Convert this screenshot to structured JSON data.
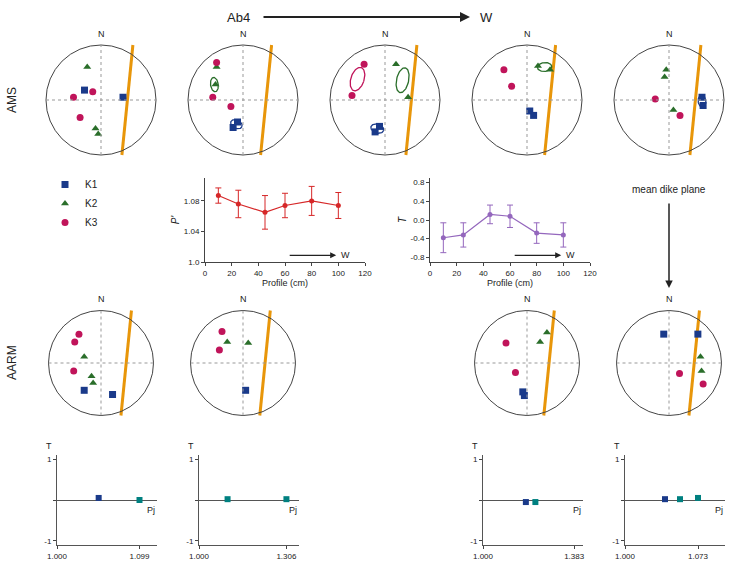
{
  "chart_data": [
    {
      "type": "stereonet",
      "xlim": [
        -1.2,
        1.2
      ],
      "ylim": [
        -1.2,
        1.2
      ],
      "tick_labels": false,
      "radius": 1.0,
      "annotations": [
        "N"
      ],
      "legend": "bottom",
      "dike": {
        "color": "#e8960a",
        "x": [
          0.38,
          0.58
        ],
        "values": [
          -1.0,
          1.0
        ]
      },
      "series": [
        {
          "name": "K1",
          "color": "#1a3a8a",
          "marker": "square",
          "x": [
            -0.3,
            0.4
          ],
          "values": [
            0.18,
            0.05
          ]
        },
        {
          "name": "K2",
          "color": "#2a6e2a",
          "marker": "triangle-up",
          "x": [
            -0.25,
            -0.1,
            -0.05
          ],
          "values": [
            0.6,
            -0.52,
            -0.62
          ]
        },
        {
          "name": "K3",
          "color": "#c0145a",
          "marker": "circle",
          "x": [
            -0.15,
            -0.5,
            -0.38
          ],
          "values": [
            0.15,
            0.05,
            -0.32
          ]
        }
      ]
    },
    {
      "type": "stereonet",
      "xlim": [
        -1.2,
        1.2
      ],
      "ylim": [
        -1.2,
        1.2
      ],
      "tick_labels": false,
      "radius": 1.0,
      "annotations": [
        "N"
      ],
      "dike": {
        "color": "#e8960a",
        "x": [
          0.32,
          0.52
        ],
        "values": [
          -1.0,
          1.0
        ]
      },
      "series": [
        {
          "name": "K1",
          "color": "#1a3a8a",
          "marker": "square",
          "x": [
            -0.1,
            -0.18
          ],
          "values": [
            -0.4,
            -0.5
          ]
        },
        {
          "name": "K2",
          "color": "#2a6e2a",
          "marker": "triangle-up",
          "x": [
            -0.48,
            -0.5
          ],
          "values": [
            0.6,
            0.28
          ]
        },
        {
          "name": "K3",
          "color": "#c0145a",
          "marker": "circle",
          "x": [
            -0.48,
            -0.55,
            -0.22
          ],
          "values": [
            0.68,
            0.05,
            -0.12
          ]
        }
      ],
      "ellipses": [
        {
          "cx": -0.12,
          "cy": -0.44,
          "w": 0.22,
          "h": 0.15,
          "angle": -25,
          "color": "#1a3a8a"
        },
        {
          "cx": -0.52,
          "cy": 0.28,
          "w": 0.14,
          "h": 0.26,
          "angle": 8,
          "color": "#2a6e2a"
        }
      ]
    },
    {
      "type": "stereonet",
      "xlim": [
        -1.2,
        1.2
      ],
      "ylim": [
        -1.2,
        1.2
      ],
      "tick_labels": false,
      "radius": 1.0,
      "annotations": [
        "N"
      ],
      "dike": {
        "color": "#e8960a",
        "x": [
          0.38,
          0.58
        ],
        "values": [
          -1.0,
          1.0
        ]
      },
      "series": [
        {
          "name": "K1",
          "color": "#1a3a8a",
          "marker": "square",
          "x": [
            -0.1,
            -0.18
          ],
          "values": [
            -0.48,
            -0.58
          ]
        },
        {
          "name": "K2",
          "color": "#2a6e2a",
          "marker": "triangle-up",
          "x": [
            0.2,
            0.42
          ],
          "values": [
            0.65,
            0.05
          ]
        },
        {
          "name": "K3",
          "color": "#c0145a",
          "marker": "circle",
          "x": [
            -0.38,
            -0.6
          ],
          "values": [
            0.65,
            0.08
          ]
        }
      ],
      "ellipses": [
        {
          "cx": -0.14,
          "cy": -0.52,
          "w": 0.24,
          "h": 0.16,
          "angle": -18,
          "color": "#1a3a8a"
        },
        {
          "cx": 0.32,
          "cy": 0.36,
          "w": 0.22,
          "h": 0.46,
          "angle": -12,
          "color": "#2a6e2a"
        },
        {
          "cx": -0.5,
          "cy": 0.38,
          "w": 0.24,
          "h": 0.44,
          "angle": -18,
          "color": "#c0145a"
        }
      ]
    },
    {
      "type": "stereonet",
      "xlim": [
        -1.2,
        1.2
      ],
      "ylim": [
        -1.2,
        1.2
      ],
      "tick_labels": false,
      "radius": 1.0,
      "annotations": [
        "N"
      ],
      "dike": {
        "color": "#e8960a",
        "x": [
          0.32,
          0.52
        ],
        "values": [
          -1.0,
          1.0
        ]
      },
      "series": [
        {
          "name": "K1",
          "color": "#1a3a8a",
          "marker": "square",
          "x": [
            0.05,
            0.12
          ],
          "values": [
            -0.2,
            -0.28
          ]
        },
        {
          "name": "K2",
          "color": "#2a6e2a",
          "marker": "triangle-up",
          "x": [
            0.42,
            0.2
          ],
          "values": [
            0.55,
            0.62
          ]
        },
        {
          "name": "K3",
          "color": "#c0145a",
          "marker": "circle",
          "x": [
            -0.42,
            -0.28
          ],
          "values": [
            0.55,
            0.25
          ]
        }
      ],
      "ellipses": [
        {
          "cx": 0.32,
          "cy": 0.6,
          "w": 0.26,
          "h": 0.16,
          "angle": 5,
          "color": "#2a6e2a"
        }
      ]
    },
    {
      "type": "stereonet",
      "xlim": [
        -1.2,
        1.2
      ],
      "ylim": [
        -1.2,
        1.2
      ],
      "tick_labels": false,
      "radius": 1.0,
      "annotations": [
        "N"
      ],
      "dike": {
        "color": "#e8960a",
        "x": [
          0.38,
          0.58
        ],
        "values": [
          -1.0,
          1.0
        ]
      },
      "series": [
        {
          "name": "K1",
          "color": "#1a3a8a",
          "marker": "square",
          "x": [
            0.6,
            0.62
          ],
          "values": [
            0.05,
            -0.1
          ]
        },
        {
          "name": "K2",
          "color": "#2a6e2a",
          "marker": "triangle-up",
          "x": [
            -0.05,
            -0.08,
            0.08
          ],
          "values": [
            0.55,
            0.42,
            -0.18
          ]
        },
        {
          "name": "K3",
          "color": "#c0145a",
          "marker": "circle",
          "x": [
            -0.25,
            0.2
          ],
          "values": [
            0.02,
            -0.28
          ]
        }
      ],
      "ellipses": [
        {
          "cx": 0.6,
          "cy": -0.02,
          "w": 0.14,
          "h": 0.22,
          "angle": 5,
          "color": "#1a3a8a"
        }
      ]
    },
    {
      "type": "stereonet",
      "xlim": [
        -1.2,
        1.2
      ],
      "ylim": [
        -1.2,
        1.2
      ],
      "tick_labels": false,
      "radius": 1.0,
      "annotations": [
        "N"
      ],
      "dike": {
        "color": "#e8960a",
        "x": [
          0.38,
          0.58
        ],
        "values": [
          -1.0,
          1.0
        ]
      },
      "series": [
        {
          "name": "K1",
          "color": "#1a3a8a",
          "marker": "square",
          "x": [
            -0.32,
            0.22
          ],
          "values": [
            -0.52,
            -0.6
          ]
        },
        {
          "name": "K2",
          "color": "#2a6e2a",
          "marker": "triangle-up",
          "x": [
            -0.32,
            -0.18,
            -0.15
          ],
          "values": [
            0.12,
            -0.25,
            -0.38
          ]
        },
        {
          "name": "K3",
          "color": "#c0145a",
          "marker": "circle",
          "x": [
            -0.5,
            -0.42,
            -0.52
          ],
          "values": [
            0.4,
            0.55,
            -0.15
          ]
        }
      ]
    },
    {
      "type": "stereonet",
      "xlim": [
        -1.2,
        1.2
      ],
      "ylim": [
        -1.2,
        1.2
      ],
      "tick_labels": false,
      "radius": 1.0,
      "annotations": [
        "N"
      ],
      "dike": {
        "color": "#e8960a",
        "x": [
          0.32,
          0.52
        ],
        "values": [
          -1.0,
          1.0
        ]
      },
      "series": [
        {
          "name": "K1",
          "color": "#1a3a8a",
          "marker": "square",
          "x": [
            0.05
          ],
          "values": [
            -0.52
          ]
        },
        {
          "name": "K2",
          "color": "#2a6e2a",
          "marker": "triangle-up",
          "x": [
            -0.3,
            0.1
          ],
          "values": [
            0.4,
            0.38
          ]
        },
        {
          "name": "K3",
          "color": "#c0145a",
          "marker": "circle",
          "x": [
            -0.4,
            -0.45
          ],
          "values": [
            0.6,
            0.25
          ]
        }
      ]
    },
    {
      "type": "stereonet",
      "xlim": [
        -1.2,
        1.2
      ],
      "ylim": [
        -1.2,
        1.2
      ],
      "tick_labels": false,
      "radius": 1.0,
      "annotations": [
        "N"
      ],
      "dike": {
        "color": "#e8960a",
        "x": [
          0.32,
          0.52
        ],
        "values": [
          -1.0,
          1.0
        ]
      },
      "series": [
        {
          "name": "K1",
          "color": "#1a3a8a",
          "marker": "square",
          "x": [
            -0.08,
            -0.05
          ],
          "values": [
            -0.55,
            -0.62
          ]
        },
        {
          "name": "K2",
          "color": "#2a6e2a",
          "marker": "triangle-up",
          "x": [
            0.25,
            0.38
          ],
          "values": [
            0.4,
            0.58
          ]
        },
        {
          "name": "K3",
          "color": "#c0145a",
          "marker": "circle",
          "x": [
            -0.4,
            -0.22
          ],
          "values": [
            0.38,
            -0.18
          ]
        }
      ]
    },
    {
      "type": "stereonet",
      "xlim": [
        -1.2,
        1.2
      ],
      "ylim": [
        -1.2,
        1.2
      ],
      "tick_labels": false,
      "radius": 1.0,
      "annotations": [
        "N"
      ],
      "dike": {
        "color": "#e8960a",
        "x": [
          0.38,
          0.58
        ],
        "values": [
          -1.0,
          1.0
        ]
      },
      "series": [
        {
          "name": "K1",
          "color": "#1a3a8a",
          "marker": "square",
          "x": [
            -0.1,
            0.55
          ],
          "values": [
            0.55,
            0.55
          ]
        },
        {
          "name": "K2",
          "color": "#2a6e2a",
          "marker": "triangle-up",
          "x": [
            0.6,
            0.62
          ],
          "values": [
            0.12,
            -0.15
          ]
        },
        {
          "name": "K3",
          "color": "#c0145a",
          "marker": "circle",
          "x": [
            0.2,
            0.65
          ],
          "values": [
            -0.2,
            -0.4
          ]
        }
      ]
    },
    {
      "type": "line",
      "marker": "circle",
      "grid": false,
      "xlabel": "Profile (cm)",
      "ylabel": "P'",
      "annotations": [
        "W"
      ],
      "x": [
        10,
        25,
        45,
        60,
        80,
        100
      ],
      "values": [
        1.087,
        1.076,
        1.065,
        1.074,
        1.08,
        1.074
      ],
      "error": [
        0.01,
        0.018,
        0.022,
        0.016,
        0.019,
        0.017
      ],
      "xlim": [
        0,
        120
      ],
      "xticks": [
        0,
        20,
        40,
        60,
        80,
        100,
        120
      ],
      "ylim": [
        1.0,
        1.11
      ],
      "yticks": [
        {
          "value": 1.0,
          "label": "1.0"
        },
        1.04,
        1.08
      ]
    },
    {
      "type": "line",
      "marker": "circle",
      "grid": false,
      "xlabel": "Profile (cm)",
      "ylabel": "T",
      "annotations": [
        "W"
      ],
      "x": [
        10,
        25,
        45,
        60,
        80,
        100
      ],
      "values": [
        -0.38,
        -0.32,
        0.12,
        0.08,
        -0.28,
        -0.32
      ],
      "error": [
        0.32,
        0.26,
        0.2,
        0.24,
        0.22,
        0.26
      ],
      "xlim": [
        0,
        120
      ],
      "xticks": [
        0,
        20,
        40,
        60,
        80,
        100,
        120
      ],
      "ylim": [
        -0.9,
        0.9
      ],
      "yticks": [
        -0.8,
        -0.4,
        {
          "value": 0.0,
          "label": "0.0"
        },
        0.4,
        0.8
      ]
    },
    {
      "type": "scatter",
      "marker": "square",
      "grid": false,
      "xlabel": "Pj",
      "ylabel": "T",
      "x": [
        1.05,
        1.099
      ],
      "values": [
        0.05,
        0.0
      ],
      "colors": [
        "#1a3a8a",
        "#008080"
      ],
      "xlim": [
        1.0,
        1.12
      ],
      "xticks": [
        {
          "value": 1.0,
          "label": "1.000"
        },
        1.099
      ],
      "ylim": [
        -1.1,
        1.1
      ],
      "yticks": [
        -1,
        {
          "value": 0,
          "label": null
        },
        1
      ]
    },
    {
      "type": "scatter",
      "marker": "square",
      "grid": false,
      "xlabel": "Pj",
      "ylabel": "T",
      "x": [
        1.1,
        1.306
      ],
      "values": [
        0.02,
        0.02
      ],
      "colors": [
        "#008080",
        "#008080"
      ],
      "xlim": [
        1.0,
        1.35
      ],
      "xticks": [
        {
          "value": 1.0,
          "label": "1.000"
        },
        1.306
      ],
      "ylim": [
        -1.1,
        1.1
      ],
      "yticks": [
        -1,
        {
          "value": 0,
          "label": null
        },
        1
      ]
    },
    {
      "type": "scatter",
      "marker": "square",
      "grid": false,
      "xlabel": "Pj",
      "ylabel": "T",
      "x": [
        1.18,
        1.22
      ],
      "values": [
        -0.05,
        -0.05
      ],
      "colors": [
        "#1a3a8a",
        "#008080"
      ],
      "xlim": [
        1.0,
        1.42
      ],
      "xticks": [
        {
          "value": 1.0,
          "label": "1.000"
        },
        1.383
      ],
      "ylim": [
        -1.1,
        1.1
      ],
      "yticks": [
        -1,
        {
          "value": 0,
          "label": null
        },
        1
      ]
    },
    {
      "type": "scatter",
      "marker": "square",
      "grid": false,
      "xlabel": "Pj",
      "ylabel": "T",
      "x": [
        1.04,
        1.055,
        1.073
      ],
      "values": [
        0.02,
        0.02,
        0.05
      ],
      "colors": [
        "#1a3a8a",
        "#008080",
        "#008080"
      ],
      "xlim": [
        1.0,
        1.1
      ],
      "xticks": [
        {
          "value": 1.0,
          "label": "1.000"
        },
        1.073
      ],
      "ylim": [
        -1.1,
        1.1
      ],
      "yticks": [
        -1,
        {
          "value": 0,
          "label": null
        },
        1
      ]
    }
  ],
  "annotations": [
    "Ab4",
    "W",
    "AMS",
    "AARM",
    "mean dike plane"
  ]
}
